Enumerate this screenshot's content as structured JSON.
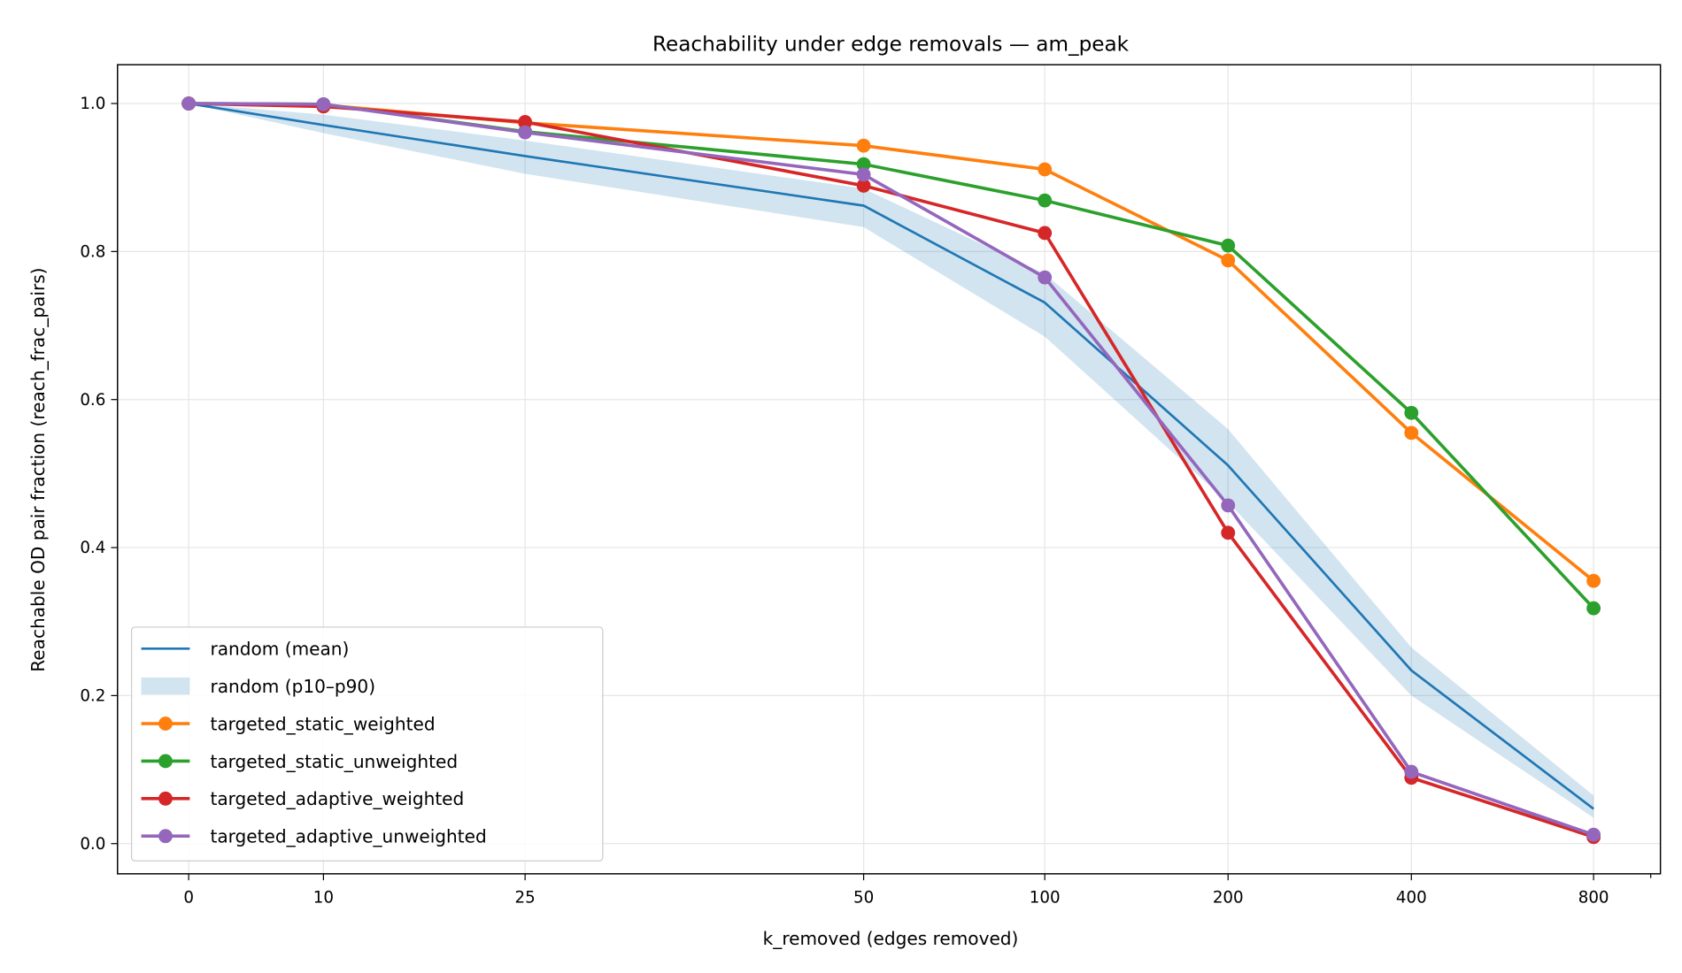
{
  "chart_data": {
    "type": "line",
    "title": "Reachability under edge removals — am_peak",
    "xlabel": "k_removed (edges removed)",
    "ylabel": "Reachable OD pair fraction (reach_frac_pairs)",
    "x": [
      0,
      10,
      25,
      50,
      100,
      200,
      400,
      800
    ],
    "x_tick_labels": [
      "0",
      "10",
      "25",
      "50",
      "100",
      "200",
      "400",
      "800"
    ],
    "x_scale": "symlog",
    "ylim": [
      -0.04,
      1.045
    ],
    "y_ticks": [
      0.0,
      0.2,
      0.4,
      0.6,
      0.8,
      1.0
    ],
    "y_tick_labels": [
      "0.0",
      "0.2",
      "0.4",
      "0.6",
      "0.8",
      "1.0"
    ],
    "grid": true,
    "legend_position": "lower-left",
    "band": {
      "name": "random (p10–p90)",
      "color": "#1f77b4",
      "lower": [
        1.0,
        0.96,
        0.905,
        0.833,
        0.685,
        0.461,
        0.2,
        0.035
      ],
      "upper": [
        1.0,
        0.985,
        0.95,
        0.885,
        0.77,
        0.56,
        0.265,
        0.065
      ]
    },
    "series": [
      {
        "name": "random (mean)",
        "color": "#1f77b4",
        "markers": false,
        "values": [
          1.0,
          0.971,
          0.929,
          0.862,
          0.731,
          0.511,
          0.234,
          0.047
        ]
      },
      {
        "name": "targeted_static_weighted",
        "color": "#ff7f0e",
        "markers": true,
        "values": [
          1.0,
          0.998,
          0.974,
          0.943,
          0.911,
          0.788,
          0.555,
          0.355
        ]
      },
      {
        "name": "targeted_static_unweighted",
        "color": "#2ca02c",
        "markers": true,
        "values": [
          1.0,
          0.999,
          0.962,
          0.918,
          0.869,
          0.808,
          0.582,
          0.318
        ]
      },
      {
        "name": "targeted_adaptive_weighted",
        "color": "#d62728",
        "markers": true,
        "values": [
          1.0,
          0.996,
          0.975,
          0.889,
          0.825,
          0.42,
          0.089,
          0.009
        ]
      },
      {
        "name": "targeted_adaptive_unweighted",
        "color": "#9467bd",
        "markers": true,
        "values": [
          1.0,
          0.999,
          0.961,
          0.904,
          0.765,
          0.457,
          0.097,
          0.012
        ]
      }
    ],
    "legend_order": [
      "random (mean)",
      "random (p10–p90)",
      "targeted_static_weighted",
      "targeted_static_unweighted",
      "targeted_adaptive_weighted",
      "targeted_adaptive_unweighted"
    ]
  }
}
